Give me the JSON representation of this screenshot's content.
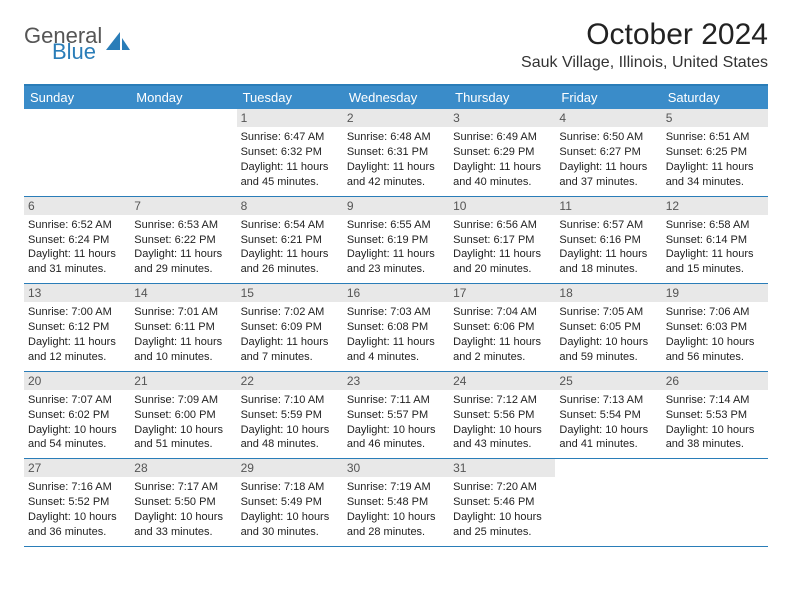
{
  "logo": {
    "part1": "General",
    "part2": "Blue"
  },
  "title": {
    "month_year": "October 2024",
    "location": "Sauk Village, Illinois, United States"
  },
  "colors": {
    "header_bg": "#3a8cc9",
    "border": "#2a7db8",
    "daynum_bg": "#e8e8e8"
  },
  "days_of_week": [
    "Sunday",
    "Monday",
    "Tuesday",
    "Wednesday",
    "Thursday",
    "Friday",
    "Saturday"
  ],
  "weeks": [
    [
      {
        "n": "",
        "sr": "",
        "ss": "",
        "dl": ""
      },
      {
        "n": "",
        "sr": "",
        "ss": "",
        "dl": ""
      },
      {
        "n": "1",
        "sr": "Sunrise: 6:47 AM",
        "ss": "Sunset: 6:32 PM",
        "dl": "Daylight: 11 hours and 45 minutes."
      },
      {
        "n": "2",
        "sr": "Sunrise: 6:48 AM",
        "ss": "Sunset: 6:31 PM",
        "dl": "Daylight: 11 hours and 42 minutes."
      },
      {
        "n": "3",
        "sr": "Sunrise: 6:49 AM",
        "ss": "Sunset: 6:29 PM",
        "dl": "Daylight: 11 hours and 40 minutes."
      },
      {
        "n": "4",
        "sr": "Sunrise: 6:50 AM",
        "ss": "Sunset: 6:27 PM",
        "dl": "Daylight: 11 hours and 37 minutes."
      },
      {
        "n": "5",
        "sr": "Sunrise: 6:51 AM",
        "ss": "Sunset: 6:25 PM",
        "dl": "Daylight: 11 hours and 34 minutes."
      }
    ],
    [
      {
        "n": "6",
        "sr": "Sunrise: 6:52 AM",
        "ss": "Sunset: 6:24 PM",
        "dl": "Daylight: 11 hours and 31 minutes."
      },
      {
        "n": "7",
        "sr": "Sunrise: 6:53 AM",
        "ss": "Sunset: 6:22 PM",
        "dl": "Daylight: 11 hours and 29 minutes."
      },
      {
        "n": "8",
        "sr": "Sunrise: 6:54 AM",
        "ss": "Sunset: 6:21 PM",
        "dl": "Daylight: 11 hours and 26 minutes."
      },
      {
        "n": "9",
        "sr": "Sunrise: 6:55 AM",
        "ss": "Sunset: 6:19 PM",
        "dl": "Daylight: 11 hours and 23 minutes."
      },
      {
        "n": "10",
        "sr": "Sunrise: 6:56 AM",
        "ss": "Sunset: 6:17 PM",
        "dl": "Daylight: 11 hours and 20 minutes."
      },
      {
        "n": "11",
        "sr": "Sunrise: 6:57 AM",
        "ss": "Sunset: 6:16 PM",
        "dl": "Daylight: 11 hours and 18 minutes."
      },
      {
        "n": "12",
        "sr": "Sunrise: 6:58 AM",
        "ss": "Sunset: 6:14 PM",
        "dl": "Daylight: 11 hours and 15 minutes."
      }
    ],
    [
      {
        "n": "13",
        "sr": "Sunrise: 7:00 AM",
        "ss": "Sunset: 6:12 PM",
        "dl": "Daylight: 11 hours and 12 minutes."
      },
      {
        "n": "14",
        "sr": "Sunrise: 7:01 AM",
        "ss": "Sunset: 6:11 PM",
        "dl": "Daylight: 11 hours and 10 minutes."
      },
      {
        "n": "15",
        "sr": "Sunrise: 7:02 AM",
        "ss": "Sunset: 6:09 PM",
        "dl": "Daylight: 11 hours and 7 minutes."
      },
      {
        "n": "16",
        "sr": "Sunrise: 7:03 AM",
        "ss": "Sunset: 6:08 PM",
        "dl": "Daylight: 11 hours and 4 minutes."
      },
      {
        "n": "17",
        "sr": "Sunrise: 7:04 AM",
        "ss": "Sunset: 6:06 PM",
        "dl": "Daylight: 11 hours and 2 minutes."
      },
      {
        "n": "18",
        "sr": "Sunrise: 7:05 AM",
        "ss": "Sunset: 6:05 PM",
        "dl": "Daylight: 10 hours and 59 minutes."
      },
      {
        "n": "19",
        "sr": "Sunrise: 7:06 AM",
        "ss": "Sunset: 6:03 PM",
        "dl": "Daylight: 10 hours and 56 minutes."
      }
    ],
    [
      {
        "n": "20",
        "sr": "Sunrise: 7:07 AM",
        "ss": "Sunset: 6:02 PM",
        "dl": "Daylight: 10 hours and 54 minutes."
      },
      {
        "n": "21",
        "sr": "Sunrise: 7:09 AM",
        "ss": "Sunset: 6:00 PM",
        "dl": "Daylight: 10 hours and 51 minutes."
      },
      {
        "n": "22",
        "sr": "Sunrise: 7:10 AM",
        "ss": "Sunset: 5:59 PM",
        "dl": "Daylight: 10 hours and 48 minutes."
      },
      {
        "n": "23",
        "sr": "Sunrise: 7:11 AM",
        "ss": "Sunset: 5:57 PM",
        "dl": "Daylight: 10 hours and 46 minutes."
      },
      {
        "n": "24",
        "sr": "Sunrise: 7:12 AM",
        "ss": "Sunset: 5:56 PM",
        "dl": "Daylight: 10 hours and 43 minutes."
      },
      {
        "n": "25",
        "sr": "Sunrise: 7:13 AM",
        "ss": "Sunset: 5:54 PM",
        "dl": "Daylight: 10 hours and 41 minutes."
      },
      {
        "n": "26",
        "sr": "Sunrise: 7:14 AM",
        "ss": "Sunset: 5:53 PM",
        "dl": "Daylight: 10 hours and 38 minutes."
      }
    ],
    [
      {
        "n": "27",
        "sr": "Sunrise: 7:16 AM",
        "ss": "Sunset: 5:52 PM",
        "dl": "Daylight: 10 hours and 36 minutes."
      },
      {
        "n": "28",
        "sr": "Sunrise: 7:17 AM",
        "ss": "Sunset: 5:50 PM",
        "dl": "Daylight: 10 hours and 33 minutes."
      },
      {
        "n": "29",
        "sr": "Sunrise: 7:18 AM",
        "ss": "Sunset: 5:49 PM",
        "dl": "Daylight: 10 hours and 30 minutes."
      },
      {
        "n": "30",
        "sr": "Sunrise: 7:19 AM",
        "ss": "Sunset: 5:48 PM",
        "dl": "Daylight: 10 hours and 28 minutes."
      },
      {
        "n": "31",
        "sr": "Sunrise: 7:20 AM",
        "ss": "Sunset: 5:46 PM",
        "dl": "Daylight: 10 hours and 25 minutes."
      },
      {
        "n": "",
        "sr": "",
        "ss": "",
        "dl": ""
      },
      {
        "n": "",
        "sr": "",
        "ss": "",
        "dl": ""
      }
    ]
  ]
}
